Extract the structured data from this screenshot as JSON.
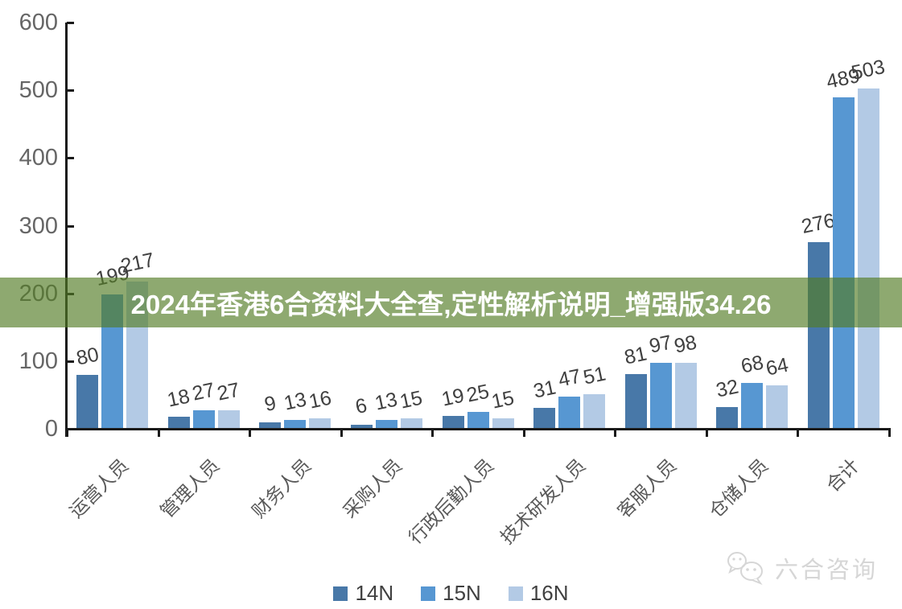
{
  "banner": {
    "text": "2024年香港6合资料大全查,定性解析说明_增强版34.26",
    "bg_color": "rgba(84,125,38,0.66)",
    "text_color": "#ffffff"
  },
  "watermark": {
    "icon": "chat-bubbles-icon",
    "text": "六合咨询"
  },
  "chart_data": {
    "type": "bar",
    "title": "",
    "xlabel": "",
    "ylabel": "",
    "categories": [
      "运营人员",
      "管理人员",
      "财务人员",
      "采购人员",
      "行政后勤人员",
      "技术研发人员",
      "客服人员",
      "仓储人员",
      "合计"
    ],
    "series": [
      {
        "name": "14N",
        "color": "#4878A8",
        "values": [
          80,
          18,
          9,
          6,
          19,
          31,
          81,
          32,
          276
        ]
      },
      {
        "name": "15N",
        "color": "#5797D2",
        "values": [
          199,
          27,
          13,
          13,
          25,
          47,
          97,
          68,
          489
        ]
      },
      {
        "name": "16N",
        "color": "#B3CAE5",
        "values": [
          217,
          27,
          16,
          15,
          15,
          51,
          98,
          64,
          503
        ]
      }
    ],
    "ylim": [
      0,
      600
    ],
    "y_ticks": [
      0,
      100,
      200,
      300,
      400,
      500,
      600
    ],
    "grid": false,
    "legend_position": "bottom",
    "data_labels": true,
    "axis_color": "#1a1a1a",
    "label_color": "#404040",
    "tick_label_color": "#666666"
  }
}
